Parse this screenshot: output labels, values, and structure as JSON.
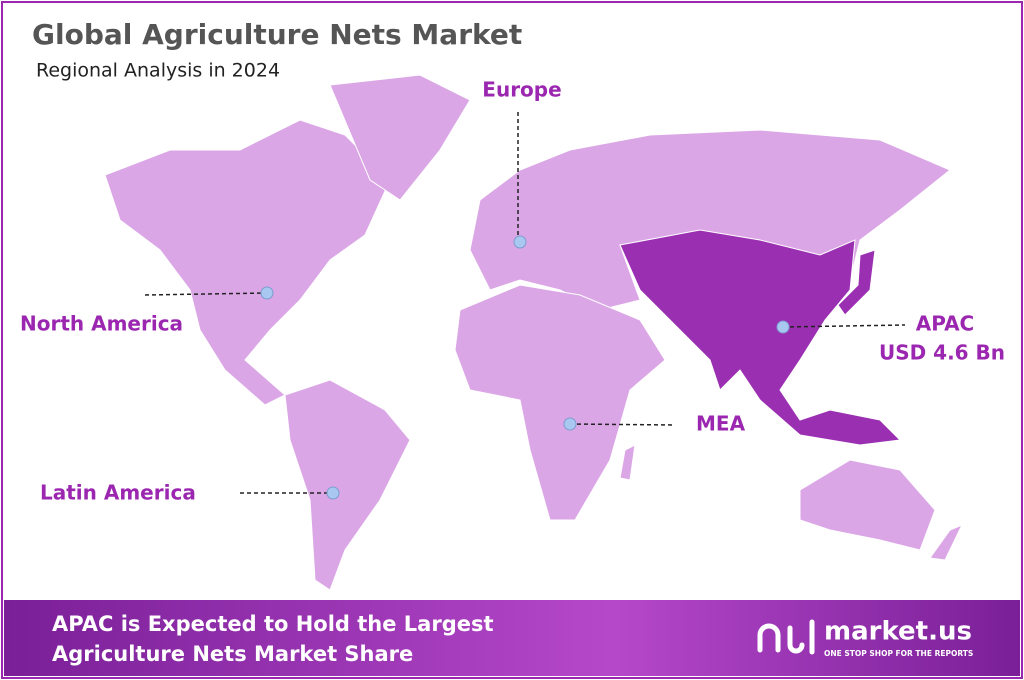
{
  "header": {
    "title": "Global Agriculture Nets Market",
    "subtitle": "Regional Analysis in 2024"
  },
  "regions": [
    {
      "label": "Europe"
    },
    {
      "label": "North America"
    },
    {
      "label": "APAC",
      "note": "USD 4.6 Bn"
    },
    {
      "label": "MEA"
    },
    {
      "label": "Latin America"
    }
  ],
  "footer": {
    "lines": [
      "APAC is Expected to Hold the Largest",
      "Agriculture Nets Market Share"
    ],
    "brand": "market.us",
    "tagline": "ONE STOP SHOP FOR THE REPORTS"
  }
}
